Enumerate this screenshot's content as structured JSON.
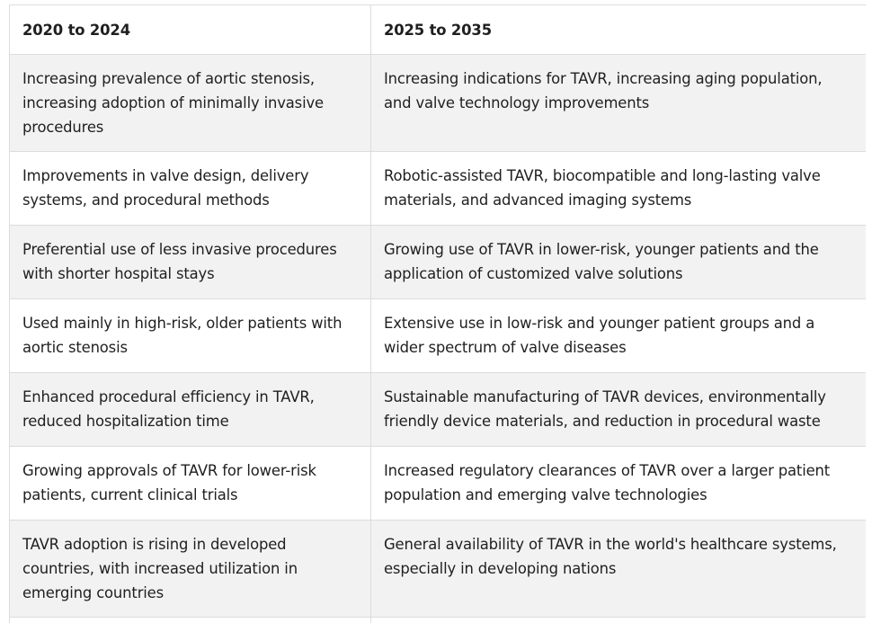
{
  "table": {
    "headers": [
      "2020 to 2024",
      "2025 to 2035"
    ],
    "rows": [
      {
        "left": "Increasing prevalence of aortic stenosis, increasing adoption of minimally invasive procedures",
        "right": "Increasing indications for TAVR, increasing aging population, and valve technology improvements"
      },
      {
        "left": "Improvements in valve design, delivery systems, and procedural methods",
        "right": "Robotic-assisted TAVR, biocompatible and long-lasting valve materials, and advanced imaging systems"
      },
      {
        "left": "Preferential use of less invasive procedures with shorter hospital stays",
        "right": "Growing use of TAVR in lower-risk, younger patients and the application of customized valve solutions"
      },
      {
        "left": "Used mainly in high-risk, older patients with aortic stenosis",
        "right": "Extensive use in low-risk and younger patient groups and a wider spectrum of valve diseases"
      },
      {
        "left": "Enhanced procedural efficiency in TAVR, reduced hospitalization time",
        "right": "Sustainable manufacturing of TAVR devices, environmentally friendly device materials, and reduction in procedural waste"
      },
      {
        "left": "Growing approvals of TAVR for lower-risk patients, current clinical trials",
        "right": "Increased regulatory clearances of TAVR over a larger patient population and emerging valve technologies"
      },
      {
        "left": "TAVR adoption is rising in developed countries, with increased utilization in emerging countries",
        "right": "General availability of TAVR in the world's healthcare systems, especially in developing nations"
      }
    ]
  }
}
